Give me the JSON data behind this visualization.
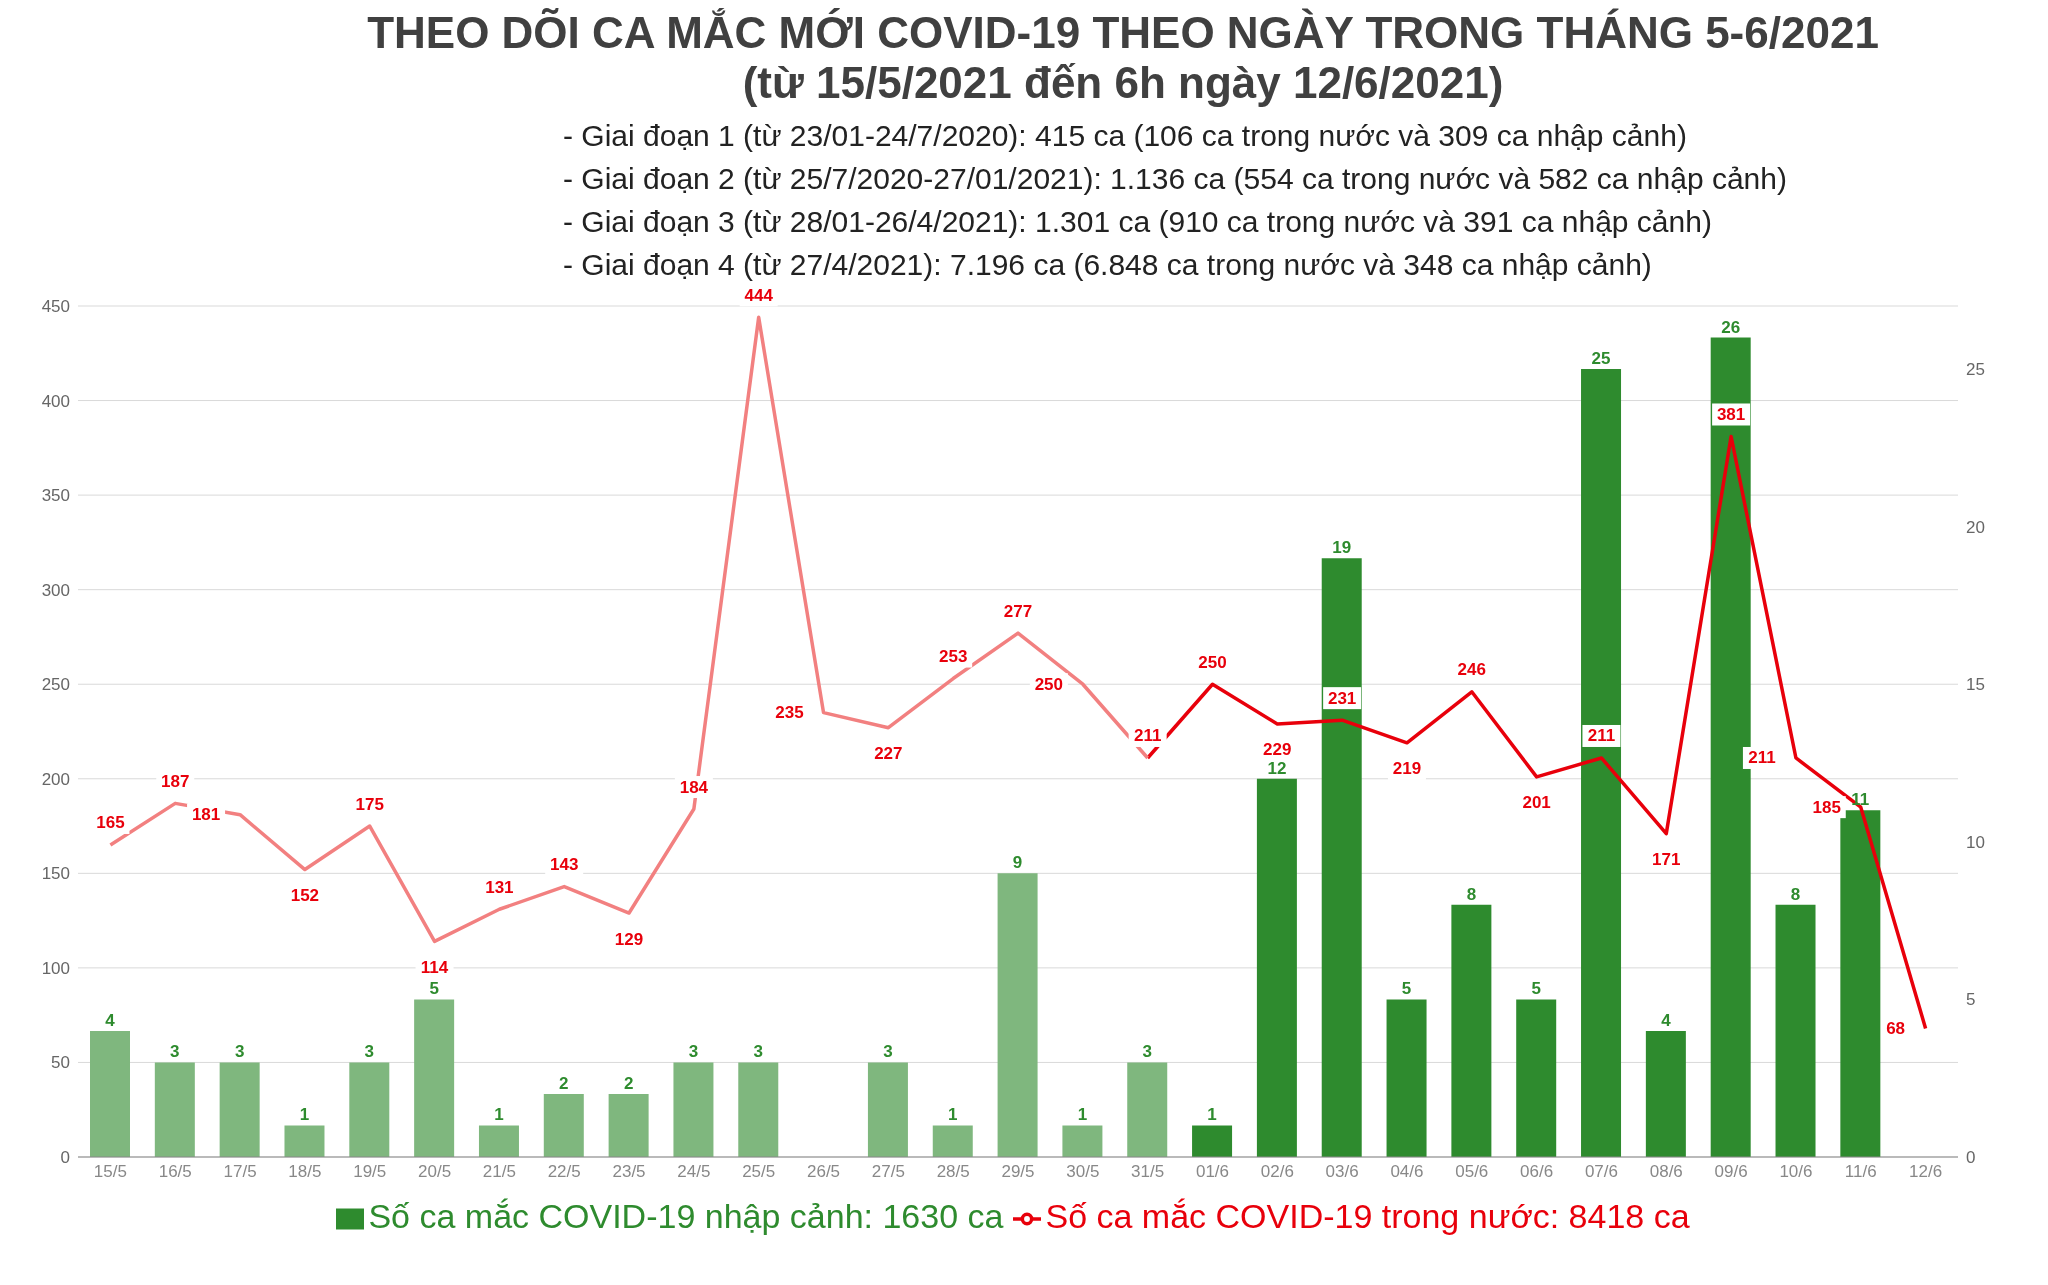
{
  "chart_data": {
    "type": "bar",
    "title": "THEO DÕI CA MẮC MỚI COVID-19 THEO NGÀY TRONG THÁNG 5-6/2021",
    "subtitle": "(từ 15/5/2021 đến 6h ngày 12/6/2021)",
    "annotations": [
      "- Giai đoạn 1 (từ 23/01-24/7/2020): 415 ca (106 ca trong nước và 309 ca nhập cảnh)",
      "- Giai đoạn 2 (từ 25/7/2020-27/01/2021): 1.136 ca (554 ca trong nước và 582 ca nhập cảnh)",
      "- Giai đoạn 3 (từ 28/01-26/4/2021): 1.301 ca (910 ca trong nước và 391 ca nhập cảnh)",
      "- Giai đoạn 4 (từ 27/4/2021): 7.196 ca (6.848 ca trong nước và 348 ca nhập cảnh)"
    ],
    "categories": [
      "15/5",
      "16/5",
      "17/5",
      "18/5",
      "19/5",
      "20/5",
      "21/5",
      "22/5",
      "23/5",
      "24/5",
      "25/5",
      "26/5",
      "27/5",
      "28/5",
      "29/5",
      "30/5",
      "31/5",
      "01/6",
      "02/6",
      "03/6",
      "04/6",
      "05/6",
      "06/6",
      "07/6",
      "08/6",
      "09/6",
      "10/6",
      "11/6",
      "12/6"
    ],
    "series": [
      {
        "axis": "y2",
        "name": "Số ca mắc COVID-19 nhập cảnh: 1630 ca",
        "color": "#2e8b2e",
        "colors": [
          "#7fb77e",
          "#7fb77e",
          "#7fb77e",
          "#7fb77e",
          "#7fb77e",
          "#7fb77e",
          "#7fb77e",
          "#7fb77e",
          "#7fb77e",
          "#7fb77e",
          "#7fb77e",
          "#7fb77e",
          "#7fb77e",
          "#7fb77e",
          "#7fb77e",
          "#7fb77e",
          "#7fb77e",
          "#2e8b2e",
          "#2e8b2e",
          "#2e8b2e",
          "#2e8b2e",
          "#2e8b2e",
          "#2e8b2e",
          "#2e8b2e",
          "#2e8b2e",
          "#2e8b2e",
          "#2e8b2e",
          "#2e8b2e",
          "#2e8b2e"
        ],
        "values": [
          4,
          3,
          3,
          1,
          3,
          5,
          1,
          2,
          2,
          3,
          3,
          null,
          3,
          1,
          9,
          1,
          3,
          1,
          12,
          19,
          5,
          8,
          5,
          25,
          4,
          26,
          8,
          11,
          null
        ]
      },
      {
        "type": "line",
        "name": "Số ca mắc COVID-19 trong nước: 8418 ca",
        "color": "#e8000b",
        "value_labels": [
          null,
          null,
          null,
          null,
          null,
          null,
          null,
          null,
          null,
          null,
          null,
          null,
          null,
          null,
          null,
          null,
          null,
          "250",
          "229",
          "231",
          "219",
          "246",
          "201",
          "211",
          "171",
          "381",
          "211",
          "185",
          "68"
        ],
        "values": [
          null,
          null,
          null,
          null,
          null,
          null,
          null,
          null,
          null,
          null,
          null,
          null,
          null,
          null,
          null,
          null,
          211,
          250,
          229,
          231,
          219,
          246,
          201,
          211,
          171,
          381,
          211,
          185,
          68
        ]
      },
      {
        "type": "line",
        "color": "#f28080",
        "values": [
          165,
          187,
          181,
          152,
          175,
          114,
          131,
          143,
          129,
          184,
          444,
          235,
          227,
          253,
          277,
          250,
          211,
          null,
          null,
          null,
          null,
          null,
          null,
          null,
          null,
          null,
          null,
          null,
          null
        ]
      }
    ],
    "ylim": [
      0,
      450
    ],
    "yticks": [
      0,
      50,
      100,
      150,
      200,
      250,
      300,
      350,
      400,
      450
    ],
    "y2lim": [
      0,
      27
    ],
    "y2ticks": [
      0,
      5,
      10,
      15,
      20,
      25
    ],
    "grid": "y",
    "legend": "bottom",
    "marker": "none",
    "data_labels": true
  }
}
